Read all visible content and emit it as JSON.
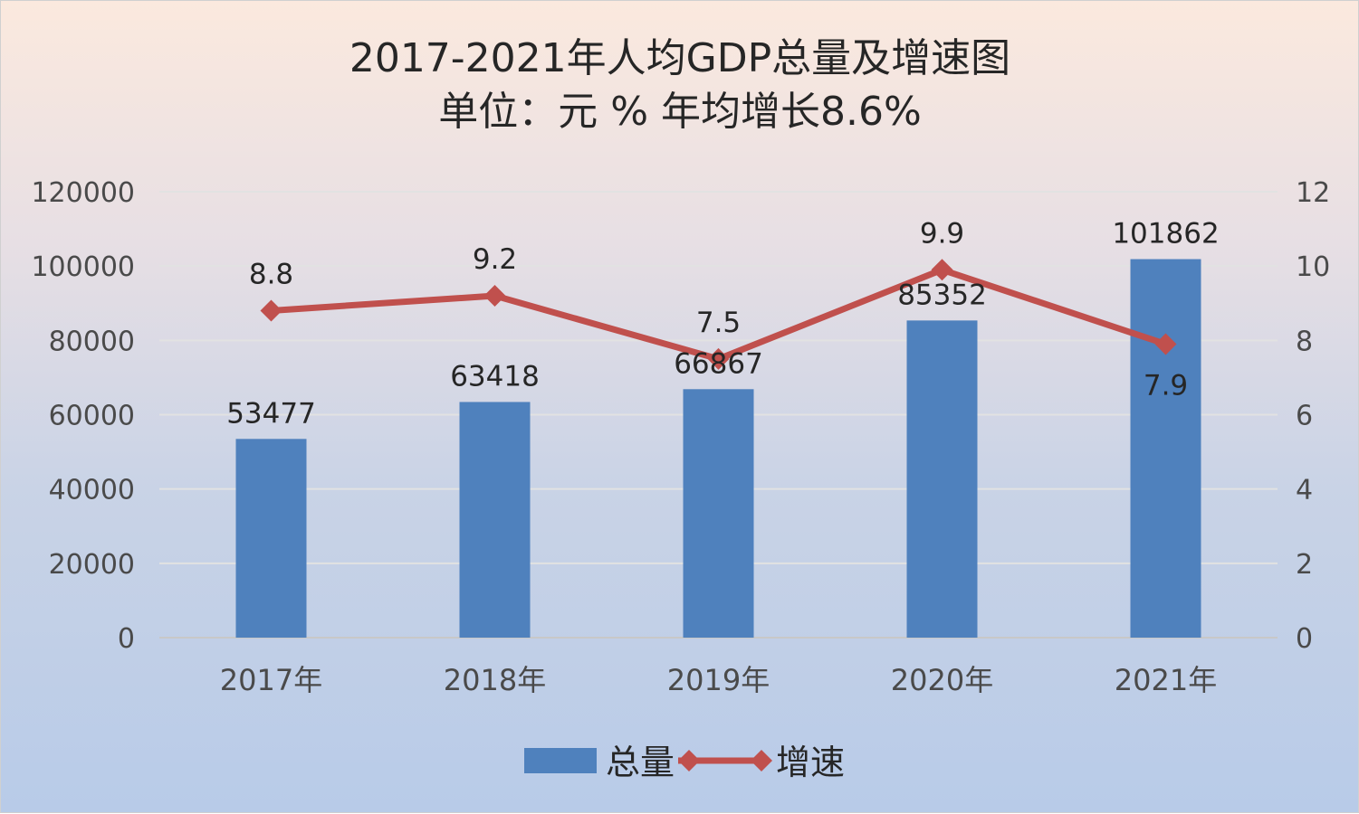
{
  "chart_data": {
    "type": "bar",
    "title": "2017-2021年人均GDP总量及增速图",
    "subtitle": "单位：元 % 年均增长8.6%",
    "categories": [
      "2017年",
      "2018年",
      "2019年",
      "2020年",
      "2021年"
    ],
    "y_left": {
      "range": [
        0,
        120000
      ],
      "ticks": [
        "0",
        "20000",
        "40000",
        "60000",
        "80000",
        "100000",
        "120000"
      ]
    },
    "y_right": {
      "range": [
        0,
        12
      ],
      "ticks": [
        "0",
        "2",
        "4",
        "6",
        "8",
        "10",
        "12"
      ]
    },
    "series": [
      {
        "name": "总量",
        "type": "bar",
        "axis": "left",
        "color": "#4f81bd",
        "values": [
          53477,
          63418,
          66867,
          85352,
          101862
        ],
        "labels": [
          "53477",
          "63418",
          "66867",
          "85352",
          "101862"
        ]
      },
      {
        "name": "增速",
        "type": "line",
        "axis": "right",
        "color": "#c0504d",
        "values": [
          8.8,
          9.2,
          7.5,
          9.9,
          7.9
        ],
        "labels": [
          "8.8",
          "9.2",
          "7.5",
          "9.9",
          "7.9"
        ]
      }
    ],
    "grid": true,
    "legend": "bottom"
  }
}
